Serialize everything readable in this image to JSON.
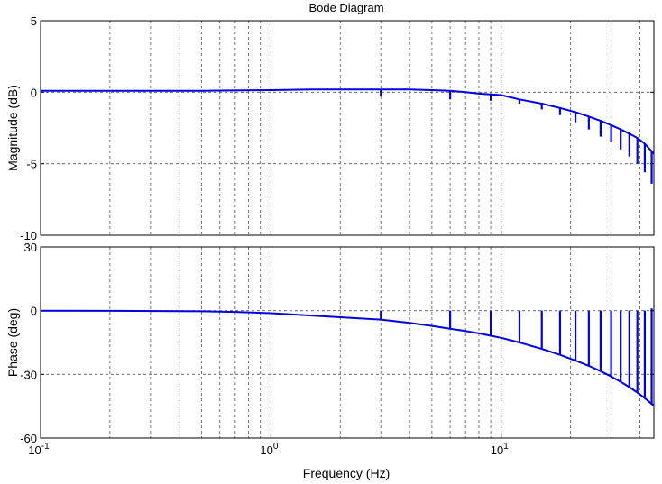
{
  "chart_data": {
    "type": "line",
    "title": "Bode Diagram",
    "xlabel": "Frequency  (Hz)",
    "x_scale": "log",
    "xlim": [
      0.1,
      46
    ],
    "x_ticks": [
      {
        "value": 0.1,
        "base": "10",
        "exp": "-1"
      },
      {
        "value": 1,
        "base": "10",
        "exp": "0"
      },
      {
        "value": 10,
        "base": "10",
        "exp": "1"
      }
    ],
    "grid": true,
    "line_color": "#0000e0",
    "panels": [
      {
        "name": "magnitude",
        "ylabel": "Magnitude (dB)",
        "ylim": [
          -10,
          5
        ],
        "y_ticks": [
          "5",
          "0",
          "-5",
          "-10"
        ],
        "y_tick_values": [
          5,
          0,
          -5,
          -10
        ],
        "series": [
          {
            "x": [
              0.1,
              0.2,
              0.5,
              1.0,
              1.5,
              2.0,
              3.0,
              4.0,
              5.0,
              6.0,
              7.0,
              8.0,
              9.0,
              10,
              12,
              15,
              18,
              21,
              24,
              27,
              30,
              33,
              36,
              39,
              42,
              46
            ],
            "y": [
              0.1,
              0.1,
              0.1,
              0.15,
              0.2,
              0.2,
              0.2,
              0.2,
              0.15,
              0.1,
              0.0,
              -0.1,
              -0.15,
              -0.2,
              -0.5,
              -0.8,
              -1.1,
              -1.4,
              -1.7,
              -2.0,
              -2.3,
              -2.6,
              -2.9,
              -3.2,
              -3.6,
              -4.3
            ],
            "notches": [
              {
                "x": 3,
                "y": -0.3
              },
              {
                "x": 6,
                "y": -0.5
              },
              {
                "x": 9,
                "y": -0.6
              },
              {
                "x": 12,
                "y": -0.8
              },
              {
                "x": 15,
                "y": -1.2
              },
              {
                "x": 18,
                "y": -1.6
              },
              {
                "x": 21,
                "y": -2.1
              },
              {
                "x": 24,
                "y": -2.6
              },
              {
                "x": 27,
                "y": -3.1
              },
              {
                "x": 30,
                "y": -3.5
              },
              {
                "x": 33,
                "y": -4.0
              },
              {
                "x": 36,
                "y": -4.5
              },
              {
                "x": 39,
                "y": -5.0
              },
              {
                "x": 42,
                "y": -5.6
              },
              {
                "x": 45,
                "y": -6.4
              }
            ]
          }
        ]
      },
      {
        "name": "phase",
        "ylabel": "Phase (deg)",
        "ylim": [
          -60,
          30
        ],
        "y_ticks": [
          "30",
          "0",
          "-30",
          "-60"
        ],
        "y_tick_values": [
          30,
          0,
          -30,
          -60
        ],
        "series": [
          {
            "x": [
              0.1,
              0.2,
              0.5,
              0.7,
              1.0,
              1.5,
              2.0,
              3.0,
              4.0,
              5.0,
              6.0,
              7.0,
              8.0,
              9.0,
              10,
              12,
              15,
              18,
              21,
              24,
              27,
              30,
              33,
              36,
              39,
              42,
              46
            ],
            "y": [
              0,
              -0.1,
              -0.3,
              -0.6,
              -1.2,
              -2.3,
              -3.1,
              -4.2,
              -5.8,
              -7.2,
              -8.5,
              -9.6,
              -10.7,
              -11.8,
              -12.8,
              -15.0,
              -18.0,
              -20.8,
              -23.5,
              -26.0,
              -28.5,
              -31.0,
              -33.5,
              -36.0,
              -38.6,
              -41.2,
              -44.8
            ],
            "spikes": [
              {
                "x": 3,
                "y": 0
              },
              {
                "x": 6,
                "y": 0
              },
              {
                "x": 9,
                "y": 0
              },
              {
                "x": 12,
                "y": 0
              },
              {
                "x": 15,
                "y": 0
              },
              {
                "x": 18,
                "y": 0
              },
              {
                "x": 21,
                "y": 0
              },
              {
                "x": 24,
                "y": 0
              },
              {
                "x": 27,
                "y": 0
              },
              {
                "x": 30,
                "y": 0
              },
              {
                "x": 33,
                "y": 0
              },
              {
                "x": 36,
                "y": 0
              },
              {
                "x": 39,
                "y": 0
              },
              {
                "x": 42,
                "y": 0
              },
              {
                "x": 45,
                "y": 1
              }
            ]
          }
        ]
      }
    ]
  }
}
